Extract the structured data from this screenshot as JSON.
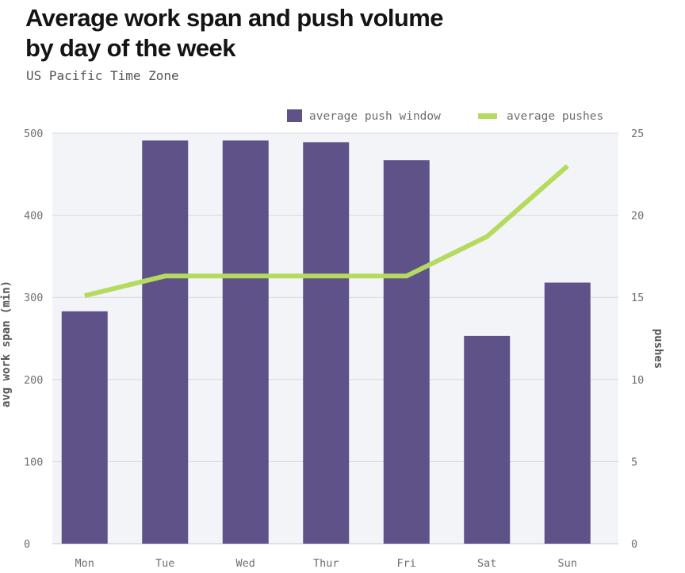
{
  "title_line1": "Average work span and push volume",
  "title_line2": "by day of the week",
  "subtitle": "US Pacific Time Zone",
  "colors": {
    "bar": "#5e5289",
    "line": "#b5db5e",
    "plot_bg": "#f3f4f8",
    "grid": "#d6d8de",
    "tick": "#6f6f6f",
    "axis_label": "#555555"
  },
  "chart_data": {
    "type": "bar",
    "categories": [
      "Mon",
      "Tue",
      "Wed",
      "Thur",
      "Fri",
      "Sat",
      "Sun"
    ],
    "series": [
      {
        "name": "average push window",
        "type": "bar",
        "axis": "left",
        "values": [
          283,
          491,
          491,
          489,
          467,
          253,
          318
        ]
      },
      {
        "name": "average pushes",
        "type": "line",
        "axis": "right",
        "values": [
          15.1,
          16.3,
          16.3,
          16.3,
          16.3,
          18.7,
          23.0
        ]
      }
    ],
    "ylabel": "avg work span (min)",
    "y2label": "pushes",
    "ylim": [
      0,
      500
    ],
    "y2lim": [
      0,
      25
    ],
    "yticks": [
      0,
      100,
      200,
      300,
      400,
      500
    ],
    "y2ticks": [
      0,
      5,
      10,
      15,
      20,
      25
    ],
    "legend_position": "top-right",
    "grid": true
  }
}
